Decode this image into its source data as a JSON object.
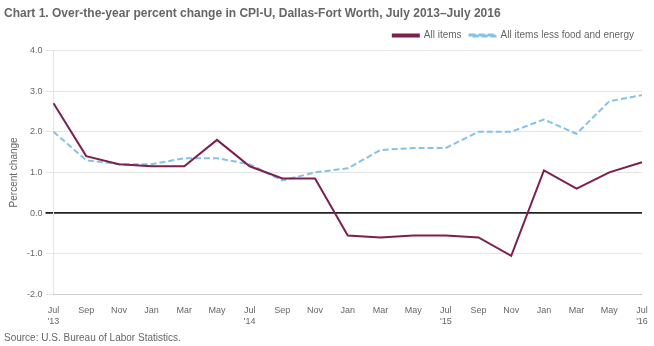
{
  "chart_data": {
    "type": "line",
    "title": "Chart 1. Over-the-year percent change in CPI-U, Dallas-Fort Worth, July 2013–July 2016",
    "ylabel": "Percent change",
    "annotations": [
      "Source: U.S. Bureau of Labor Statistics."
    ],
    "categories": [
      "Jul\n'13",
      "Sep",
      "Nov",
      "Jan",
      "Mar",
      "May",
      "Jul\n'14",
      "Sep",
      "Nov",
      "Jan",
      "Mar",
      "May",
      "Jul\n'15",
      "Sep",
      "Nov",
      "Jan",
      "Mar",
      "May",
      "Jul\n'16"
    ],
    "series": [
      {
        "name": "All items",
        "color": "#7B2050",
        "line_style": "solid",
        "values": [
          2.7,
          1.4,
          1.2,
          1.15,
          1.15,
          1.8,
          1.15,
          0.85,
          0.85,
          -0.55,
          -0.6,
          -0.55,
          -0.55,
          -0.6,
          -1.05,
          1.05,
          0.6,
          1.0,
          1.25
        ]
      },
      {
        "name": "All items less food and energy",
        "color": "#85C1E9",
        "line_style": "dashed",
        "values": [
          2.0,
          1.3,
          1.2,
          1.2,
          1.35,
          1.35,
          1.2,
          0.8,
          1.0,
          1.1,
          1.55,
          1.6,
          1.6,
          2.0,
          2.0,
          2.3,
          1.95,
          2.75,
          2.9
        ]
      }
    ],
    "ylim": [
      -2.0,
      4.0
    ],
    "yticks": [
      {
        "value": -2.0,
        "label": "-2.0"
      },
      {
        "value": -1.0,
        "label": "-1.0"
      },
      {
        "value": 0.0,
        "label": "0.0"
      },
      {
        "value": 1.0,
        "label": "1.0"
      },
      {
        "value": 2.0,
        "label": "2.0"
      },
      {
        "value": 3.0,
        "label": "3.0"
      },
      {
        "value": 4.0,
        "label": "4.0"
      }
    ],
    "grid": true,
    "legend": "upper right"
  }
}
